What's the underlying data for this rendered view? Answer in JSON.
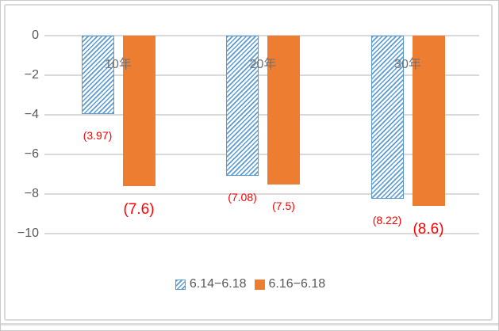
{
  "chart_data": {
    "type": "bar",
    "title": "",
    "categories": [
      "10年",
      "20年",
      "30年"
    ],
    "series": [
      {
        "name": "6.14−6.18",
        "color": "#5B9BD5",
        "pattern": "diagonal-hatch",
        "values": [
          -3.97,
          -7.08,
          -8.22
        ],
        "data_labels": [
          "(3.97)",
          "(7.08)",
          "(8.22)"
        ]
      },
      {
        "name": "6.16−6.18",
        "color": "#ED7D31",
        "pattern": "solid",
        "values": [
          -7.6,
          -7.5,
          -8.6
        ],
        "data_labels": [
          "(7.6)",
          "(7.5)",
          "(8.6)"
        ]
      }
    ],
    "y_axis": {
      "min": -10,
      "max": 0,
      "tick_interval": 2,
      "tick_labels": [
        "0",
        "−2",
        "−4",
        "−6",
        "−8",
        "−10"
      ]
    },
    "xlabel": "",
    "ylabel": "",
    "grid": "horizontal",
    "legend_position": "bottom",
    "data_label_color": "#FF0000",
    "emphasized_data_labels": [
      "(7.6)",
      "(8.6)"
    ],
    "gridline_color": "#D9D9D9",
    "axis_text_color": "#595959",
    "category_text_color": "#737373"
  }
}
